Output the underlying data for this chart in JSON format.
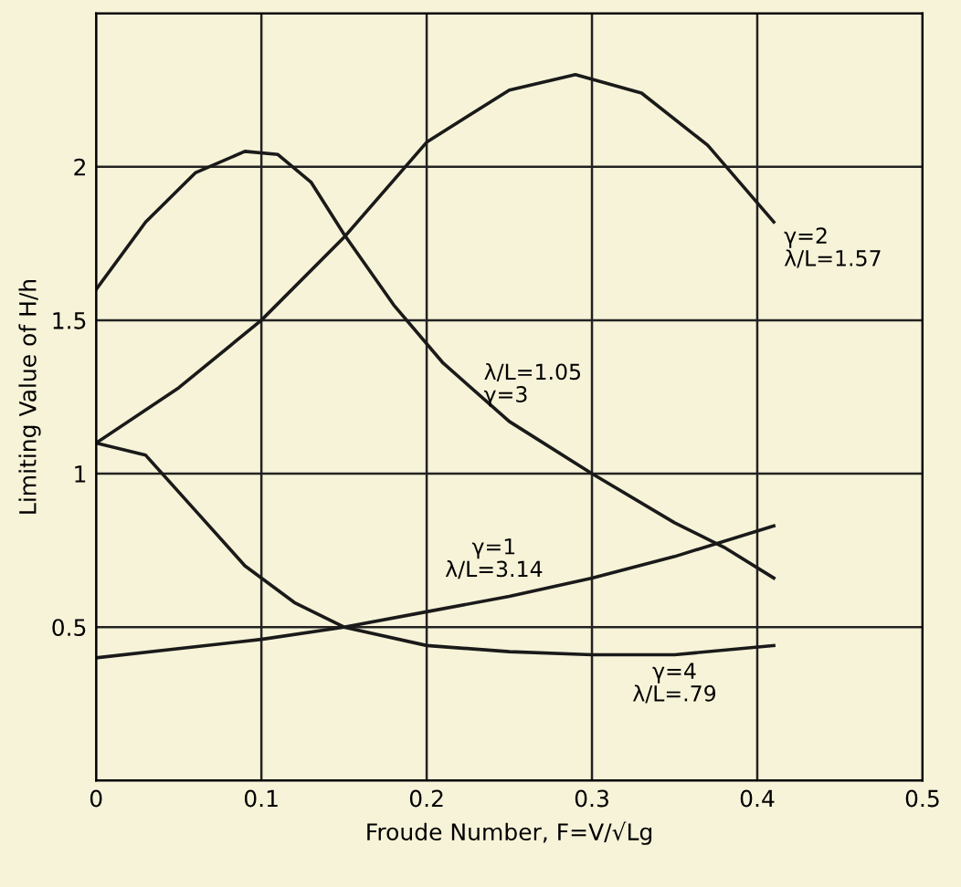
{
  "chart_data": {
    "type": "line",
    "xlabel": "Froude Number, F=V/√Lg",
    "ylabel": "Limiting Value of H/h",
    "xlim": [
      0,
      0.5
    ],
    "xticks": [
      0,
      0.1,
      0.2,
      0.3,
      0.4,
      0.5
    ],
    "ylim": [
      0,
      2.5
    ],
    "yticks": [
      {
        "value": 0,
        "label": null
      },
      0.5,
      1,
      1.5,
      2,
      {
        "value": 2.5,
        "label": null
      }
    ],
    "grid": true,
    "marker": "none",
    "line_style": "solid",
    "series": [
      {
        "color": "#1a1a1a",
        "x": [
          0,
          0.03,
          0.06,
          0.09,
          0.11,
          0.13,
          0.15,
          0.18,
          0.21,
          0.25,
          0.3,
          0.35,
          0.38,
          0.41
        ],
        "values": [
          1.6,
          1.82,
          1.98,
          2.05,
          2.04,
          1.95,
          1.78,
          1.55,
          1.36,
          1.17,
          1.0,
          0.84,
          0.76,
          0.66
        ]
      },
      {
        "color": "#1a1a1a",
        "x": [
          0,
          0.05,
          0.1,
          0.15,
          0.2,
          0.25,
          0.29,
          0.33,
          0.37,
          0.41
        ],
        "values": [
          1.1,
          1.28,
          1.5,
          1.77,
          2.08,
          2.25,
          2.3,
          2.24,
          2.07,
          1.82
        ]
      },
      {
        "color": "#1a1a1a",
        "x": [
          0,
          0.1,
          0.15,
          0.2,
          0.25,
          0.3,
          0.35,
          0.41
        ],
        "values": [
          0.4,
          0.46,
          0.5,
          0.55,
          0.6,
          0.66,
          0.73,
          0.83
        ]
      },
      {
        "color": "#1a1a1a",
        "x": [
          0,
          0.03,
          0.06,
          0.09,
          0.12,
          0.15,
          0.2,
          0.25,
          0.3,
          0.35,
          0.41
        ],
        "values": [
          1.1,
          1.06,
          0.88,
          0.7,
          0.58,
          0.5,
          0.44,
          0.42,
          0.41,
          0.41,
          0.44
        ]
      }
    ],
    "annotations": [
      {
        "text": "γ=2\nλ/L=1.57",
        "x": 0.41,
        "y": 1.82
      },
      {
        "text": "λ/L=1.05\nγ=3",
        "x": 0.21,
        "y": 1.36
      },
      {
        "text": "γ=1\nλ/L=3.14",
        "x": 0.25,
        "y": 0.6
      },
      {
        "text": "γ=4\nλ/L=.79",
        "x": 0.35,
        "y": 0.41
      }
    ]
  }
}
